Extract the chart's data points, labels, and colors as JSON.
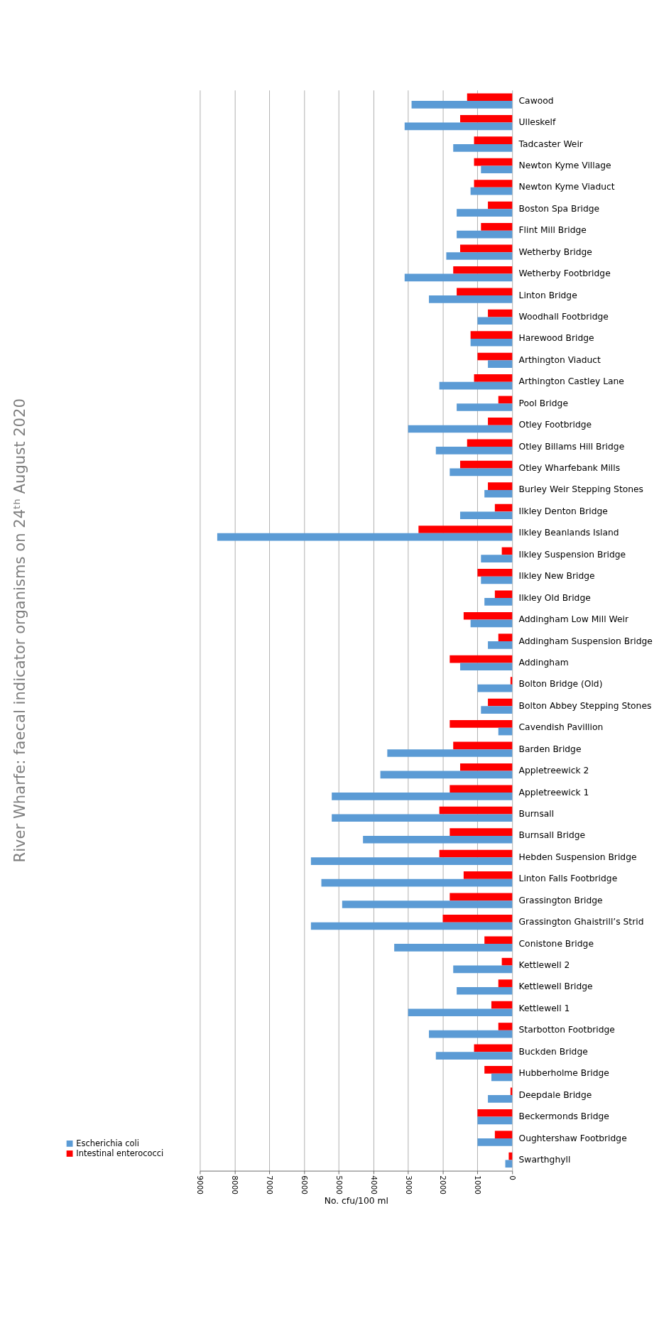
{
  "chart_data": {
    "type": "bar",
    "orientation": "horizontal",
    "title": "River Wharfe: faecal indicator organisms on 24ᵗʰ August 2020",
    "xlabel": "No. cfu/100 ml",
    "categories": [
      "Cawood",
      "Ulleskelf",
      "Tadcaster Weir",
      "Newton Kyme Village",
      "Newton Kyme Viaduct",
      "Boston Spa Bridge",
      "Flint Mill Bridge",
      "Wetherby Bridge",
      "Wetherby Footbridge",
      "Linton Bridge",
      "Woodhall Footbridge",
      "Harewood Bridge",
      "Arthington Viaduct",
      "Arthington Castley Lane",
      "Pool Bridge",
      "Otley Footbridge",
      "Otley Billams Hill Bridge",
      "Otley Wharfebank Mills",
      "Burley Weir Stepping Stones",
      "Ilkley Denton Bridge",
      "Ilkley Beanlands Island",
      "Ilkley Suspension Bridge",
      "Ilkley New Bridge",
      "Ilkley Old Bridge",
      "Addingham Low Mill Weir",
      "Addingham Suspension Bridge",
      "Addingham",
      "Bolton Bridge (Old)",
      "Bolton Abbey Stepping Stones",
      "Cavendish Pavillion",
      "Barden Bridge",
      "Appletreewick 2",
      "Appletreewick 1",
      "Burnsall",
      "Burnsall Bridge",
      "Hebden Suspension Bridge",
      "Linton Falls Footbridge",
      "Grassington Bridge",
      "Grassington Ghaistrill’s Strid",
      "Conistone Bridge",
      "Kettlewell 2",
      "Kettlewell Bridge",
      "Kettlewell 1",
      "Starbotton Footbridge",
      "Buckden Bridge",
      "Hubberholme Bridge",
      "Deepdale Bridge",
      "Beckermonds Bridge",
      "Oughtershaw Footbridge",
      "Swarthghyll"
    ],
    "series": [
      {
        "name": "Intestinal enterococci",
        "color": "#ff0000",
        "values": [
          1300,
          1500,
          1100,
          1100,
          1100,
          700,
          900,
          1500,
          1700,
          1600,
          700,
          1200,
          1000,
          1100,
          400,
          700,
          1300,
          1500,
          700,
          500,
          2700,
          300,
          1000,
          500,
          1400,
          400,
          1800,
          50,
          700,
          1800,
          1700,
          1500,
          1800,
          2100,
          1800,
          2100,
          1400,
          1800,
          2000,
          800,
          300,
          400,
          600,
          400,
          1100,
          800,
          50,
          1000,
          500,
          100
        ]
      },
      {
        "name": "Escherichia coli",
        "color": "#5b9bd5",
        "values": [
          2900,
          3100,
          1700,
          900,
          1200,
          1600,
          1600,
          1900,
          3100,
          2400,
          1000,
          1200,
          700,
          2100,
          1600,
          3000,
          2200,
          1800,
          800,
          1500,
          8500,
          900,
          900,
          800,
          1200,
          700,
          1500,
          1000,
          900,
          400,
          3600,
          3800,
          5200,
          5200,
          4300,
          5800,
          5500,
          4900,
          5800,
          3400,
          1700,
          1600,
          3000,
          2400,
          2200,
          600,
          700,
          1000,
          1000,
          200
        ]
      }
    ],
    "xlim": [
      9000,
      0
    ],
    "xticks": [
      0,
      1000,
      2000,
      3000,
      4000,
      5000,
      6000,
      7000,
      8000,
      9000
    ],
    "grid": "x",
    "legend": "bottom left"
  }
}
